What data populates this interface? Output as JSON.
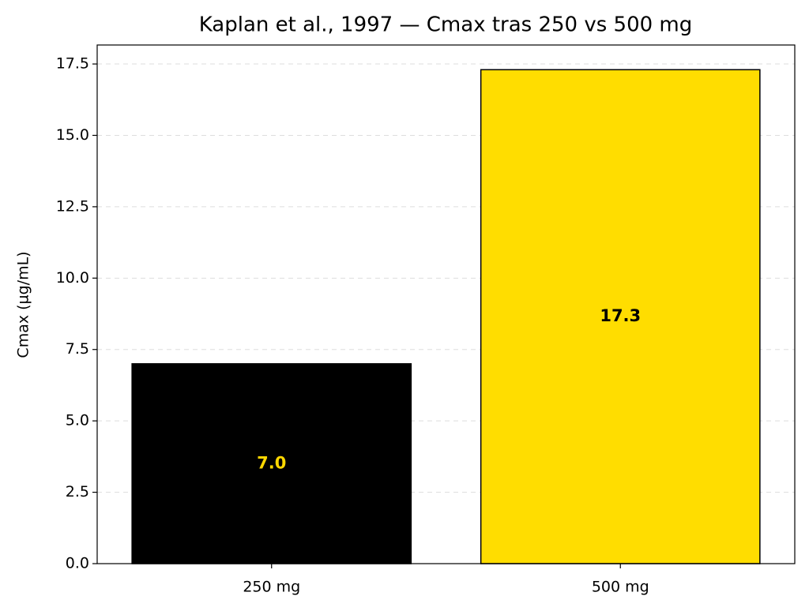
{
  "chart_data": {
    "type": "bar",
    "title": "Kaplan et al., 1997 — Cmax tras 250 vs 500 mg",
    "y_label": "Cmax (µg/mL)",
    "categories": [
      "250 mg",
      "500 mg"
    ],
    "values": [
      7.0,
      17.3
    ],
    "value_labels": [
      "7.0",
      "17.3"
    ],
    "colors": [
      "#000000",
      "#FFDD00"
    ],
    "value_label_colors": [
      "#FFD700",
      "#000000"
    ],
    "ylim": [
      0,
      18.165
    ],
    "yticks": [
      {
        "value": 0,
        "label": "0.0"
      },
      {
        "value": 2.5,
        "label": "2.5"
      },
      {
        "value": 5,
        "label": "5.0"
      },
      {
        "value": 7.5,
        "label": "7.5"
      },
      {
        "value": 10,
        "label": "10.0"
      },
      {
        "value": 12.5,
        "label": "12.5"
      },
      {
        "value": 15,
        "label": "15.0"
      },
      {
        "value": 17.5,
        "label": "17.5"
      }
    ],
    "grid": true
  }
}
